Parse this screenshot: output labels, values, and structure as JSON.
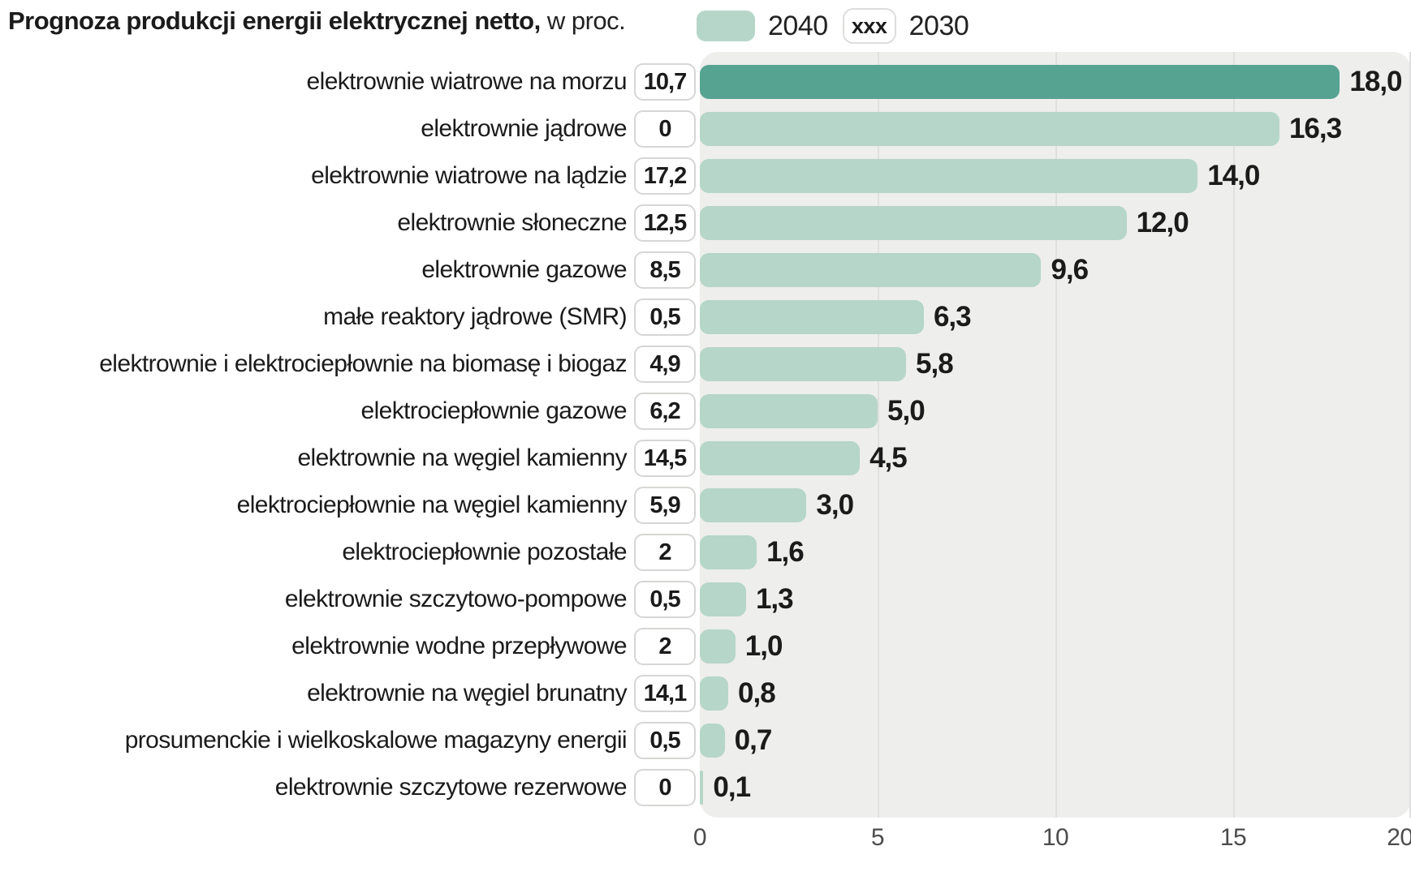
{
  "title": {
    "main": "Prognoza produkcji energii elektrycznej netto,",
    "unit": "w proc."
  },
  "legend": {
    "label_2040": "2040",
    "label_2030": "2030",
    "symbol_2030": "xxx"
  },
  "colors": {
    "bar": "#b5d6c9",
    "bar_highlight": "#57a391",
    "plot_bg": "#eeeeec",
    "gridline": "#e0e0de",
    "box_border": "#d6d6d4",
    "text": "#1b1b1b",
    "axis_text": "#4c4c4c"
  },
  "chart_data": {
    "type": "bar",
    "orientation": "horizontal",
    "title": "Prognoza produkcji energii elektrycznej netto, w proc.",
    "xlim": [
      0,
      20
    ],
    "x_ticks": [
      "0",
      "5",
      "10",
      "15",
      "20"
    ],
    "grid": "vertical",
    "legend_position": "top-right",
    "highlight_index": 0,
    "categories": [
      "elektrownie wiatrowe na morzu",
      "elektrownie jądrowe",
      "elektrownie wiatrowe na lądzie",
      "elektrownie słoneczne",
      "elektrownie gazowe",
      "małe reaktory jądrowe (SMR)",
      "elektrownie i elektrociepłownie na biomasę i biogaz",
      "elektrociepłownie gazowe",
      "elektrownie na węgiel kamienny",
      "elektrociepłownie na węgiel kamienny",
      "elektrociepłownie pozostałe",
      "elektrownie szczytowo-pompowe",
      "elektrownie wodne przepływowe",
      "elektrownie na węgiel brunatny",
      "prosumenckie i wielkoskalowe magazyny energii",
      "elektrownie szczytowe rezerwowe"
    ],
    "series": [
      {
        "name": "2040",
        "style": "bar",
        "values": [
          18.0,
          16.3,
          14.0,
          12.0,
          9.6,
          6.3,
          5.8,
          5.0,
          4.5,
          3.0,
          1.6,
          1.3,
          1.0,
          0.8,
          0.7,
          0.1
        ],
        "labels": [
          "18,0",
          "16,3",
          "14,0",
          "12,0",
          "9,6",
          "6,3",
          "5,8",
          "5,0",
          "4,5",
          "3,0",
          "1,6",
          "1,3",
          "1,0",
          "0,8",
          "0,7",
          "0,1"
        ]
      },
      {
        "name": "2030",
        "style": "boxed-number",
        "values": [
          10.7,
          0,
          17.2,
          12.5,
          8.5,
          0.5,
          4.9,
          6.2,
          14.5,
          5.9,
          2,
          0.5,
          2,
          14.1,
          0.5,
          0
        ],
        "labels": [
          "10,7",
          "0",
          "17,2",
          "12,5",
          "8,5",
          "0,5",
          "4,9",
          "6,2",
          "14,5",
          "5,9",
          "2",
          "0,5",
          "2",
          "14,1",
          "0,5",
          "0"
        ]
      }
    ]
  }
}
